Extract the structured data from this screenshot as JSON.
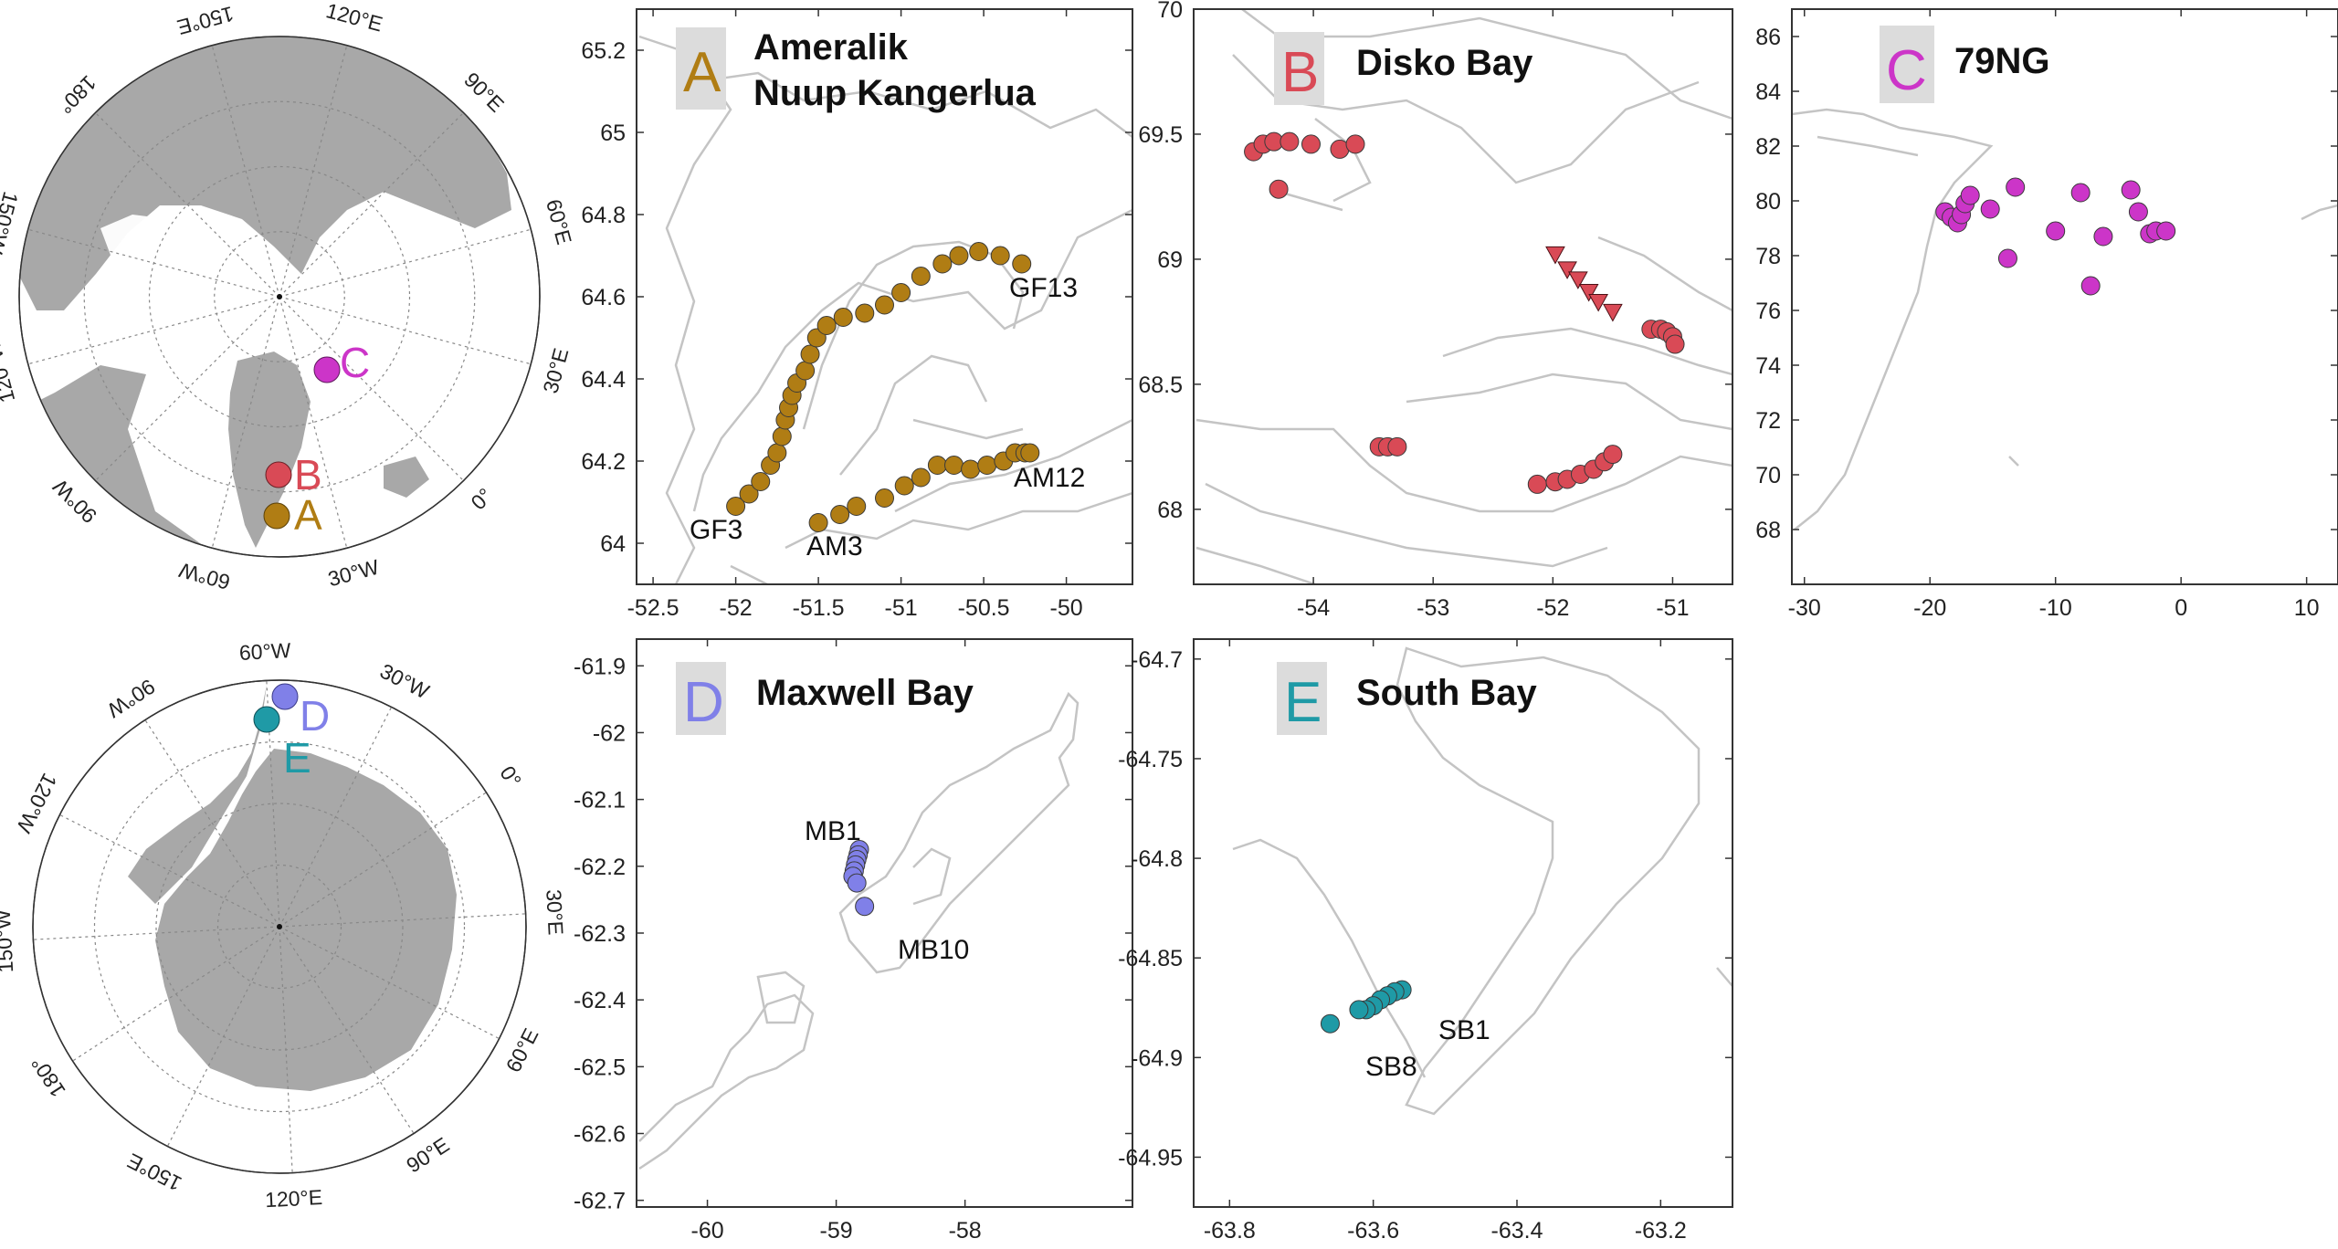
{
  "figure": {
    "globes": {
      "arctic": {
        "lon_labels": [
          "120°E",
          "90°E",
          "60°E",
          "30°E",
          "0°",
          "30°W",
          "60°W",
          "90°W",
          "120°W",
          "150°W",
          "180°",
          "150°E"
        ],
        "markers": [
          {
            "id": "A",
            "label": "A",
            "color": "#b07d14"
          },
          {
            "id": "B",
            "label": "B",
            "color": "#d94a56"
          },
          {
            "id": "C",
            "label": "C",
            "color": "#cc35c8"
          }
        ]
      },
      "antarctic": {
        "lon_labels": [
          "60°W",
          "30°W",
          "0°",
          "30°E",
          "60°E",
          "90°E",
          "120°E",
          "150°E",
          "180°",
          "150°W",
          "120°W",
          "90°W"
        ],
        "markers": [
          {
            "id": "D",
            "label": "D",
            "color": "#8080e8"
          },
          {
            "id": "E",
            "label": "E",
            "color": "#1f9aa6"
          }
        ]
      }
    },
    "colors": {
      "land": "#a8a8a8",
      "coast": "#c4c4c4",
      "panel_letter_bg": "#dcdcdc"
    }
  },
  "chart_data": [
    {
      "type": "scatter",
      "panel": "A",
      "title": "Ameralik\nNuup Kangerlua",
      "xlim": [
        -52.6,
        -49.6
      ],
      "ylim": [
        63.9,
        65.3
      ],
      "xticks": [
        "-52.5",
        "-52",
        "-51.5",
        "-51",
        "-50.5",
        "-50"
      ],
      "yticks": [
        "64",
        "64.2",
        "64.4",
        "64.6",
        "64.8",
        "65",
        "65.2"
      ],
      "color": "#b07d14",
      "series": [
        {
          "name": "GF",
          "points": [
            [
              -52.0,
              64.09
            ],
            [
              -51.92,
              64.12
            ],
            [
              -51.85,
              64.15
            ],
            [
              -51.79,
              64.19
            ],
            [
              -51.75,
              64.22
            ],
            [
              -51.72,
              64.26
            ],
            [
              -51.7,
              64.3
            ],
            [
              -51.68,
              64.33
            ],
            [
              -51.66,
              64.36
            ],
            [
              -51.63,
              64.39
            ],
            [
              -51.58,
              64.42
            ],
            [
              -51.55,
              64.46
            ],
            [
              -51.51,
              64.5
            ],
            [
              -51.45,
              64.53
            ],
            [
              -51.35,
              64.55
            ],
            [
              -51.22,
              64.56
            ],
            [
              -51.1,
              64.58
            ],
            [
              -51.0,
              64.61
            ],
            [
              -50.88,
              64.65
            ],
            [
              -50.75,
              64.68
            ],
            [
              -50.65,
              64.7
            ],
            [
              -50.53,
              64.71
            ],
            [
              -50.4,
              64.7
            ],
            [
              -50.27,
              64.68
            ]
          ]
        },
        {
          "name": "AM",
          "points": [
            [
              -51.5,
              64.05
            ],
            [
              -51.37,
              64.07
            ],
            [
              -51.27,
              64.09
            ],
            [
              -51.1,
              64.11
            ],
            [
              -50.98,
              64.14
            ],
            [
              -50.88,
              64.16
            ],
            [
              -50.78,
              64.19
            ],
            [
              -50.68,
              64.19
            ],
            [
              -50.58,
              64.18
            ],
            [
              -50.48,
              64.19
            ],
            [
              -50.38,
              64.2
            ],
            [
              -50.31,
              64.22
            ],
            [
              -50.25,
              64.22
            ],
            [
              -50.22,
              64.22
            ]
          ]
        }
      ],
      "annotations": [
        {
          "text": "GF3",
          "x": -52.0,
          "y": 64.09
        },
        {
          "text": "GF13",
          "x": -50.27,
          "y": 64.68
        },
        {
          "text": "AM3",
          "x": -51.5,
          "y": 64.05
        },
        {
          "text": "AM12",
          "x": -50.22,
          "y": 64.22
        }
      ]
    },
    {
      "type": "scatter",
      "panel": "B",
      "title": "Disko Bay",
      "xlim": [
        -55.0,
        -50.5
      ],
      "ylim": [
        67.7,
        70.0
      ],
      "xticks": [
        "-54",
        "-53",
        "-52",
        "-51"
      ],
      "yticks": [
        "68",
        "68.5",
        "69",
        "69.5",
        "70"
      ],
      "color": "#d94a56",
      "series": [
        {
          "name": "circles",
          "marker": "circle",
          "points": [
            [
              -54.5,
              69.43
            ],
            [
              -54.42,
              69.46
            ],
            [
              -54.33,
              69.47
            ],
            [
              -54.2,
              69.47
            ],
            [
              -54.02,
              69.46
            ],
            [
              -53.78,
              69.44
            ],
            [
              -53.65,
              69.46
            ],
            [
              -54.29,
              69.28
            ],
            [
              -53.45,
              68.25
            ],
            [
              -53.38,
              68.25
            ],
            [
              -53.3,
              68.25
            ],
            [
              -52.13,
              68.1
            ],
            [
              -51.98,
              68.11
            ],
            [
              -51.88,
              68.12
            ],
            [
              -51.77,
              68.14
            ],
            [
              -51.66,
              68.16
            ],
            [
              -51.57,
              68.19
            ],
            [
              -51.5,
              68.22
            ],
            [
              -51.18,
              68.72
            ],
            [
              -51.1,
              68.72
            ],
            [
              -51.05,
              68.71
            ],
            [
              -51.0,
              68.69
            ],
            [
              -50.98,
              68.66
            ]
          ]
        },
        {
          "name": "triangles",
          "marker": "triangle",
          "points": [
            [
              -51.98,
              69.02
            ],
            [
              -51.88,
              68.96
            ],
            [
              -51.79,
              68.92
            ],
            [
              -51.7,
              68.87
            ],
            [
              -51.62,
              68.83
            ],
            [
              -51.5,
              68.79
            ]
          ]
        }
      ]
    },
    {
      "type": "scatter",
      "panel": "C",
      "title": "79NG",
      "xlim": [
        -31.0,
        12.5
      ],
      "ylim": [
        66.0,
        87.0
      ],
      "xticks": [
        "-30",
        "-20",
        "-10",
        "0",
        "10"
      ],
      "yticks": [
        "68",
        "70",
        "72",
        "74",
        "76",
        "78",
        "80",
        "82",
        "84",
        "86"
      ],
      "color": "#cc35c8",
      "series": [
        {
          "name": "stations",
          "points": [
            [
              -18.8,
              79.6
            ],
            [
              -18.3,
              79.4
            ],
            [
              -17.8,
              79.2
            ],
            [
              -17.5,
              79.5
            ],
            [
              -17.2,
              79.9
            ],
            [
              -16.8,
              80.2
            ],
            [
              -15.2,
              79.7
            ],
            [
              -13.2,
              80.5
            ],
            [
              -13.8,
              77.9
            ],
            [
              -10.0,
              78.9
            ],
            [
              -8.0,
              80.3
            ],
            [
              -6.2,
              78.7
            ],
            [
              -4.0,
              80.4
            ],
            [
              -3.4,
              79.6
            ],
            [
              -2.5,
              78.8
            ],
            [
              -2.0,
              78.9
            ],
            [
              -1.2,
              78.9
            ],
            [
              -7.2,
              76.9
            ]
          ]
        }
      ]
    },
    {
      "type": "scatter",
      "panel": "D",
      "title": "Maxwell Bay",
      "xlim": [
        -60.55,
        -56.7
      ],
      "ylim": [
        -62.71,
        -61.86
      ],
      "xticks": [
        "-60",
        "-59",
        "-58"
      ],
      "yticks": [
        "-61.9",
        "-62",
        "-62.1",
        "-62.2",
        "-62.3",
        "-62.4",
        "-62.5",
        "-62.6",
        "-62.7"
      ],
      "color": "#8080e8",
      "series": [
        {
          "name": "MB",
          "points": [
            [
              -58.82,
              -62.175
            ],
            [
              -58.83,
              -62.183
            ],
            [
              -58.84,
              -62.19
            ],
            [
              -58.85,
              -62.198
            ],
            [
              -58.86,
              -62.207
            ],
            [
              -58.87,
              -62.215
            ],
            [
              -58.84,
              -62.225
            ],
            [
              -58.78,
              -62.26
            ]
          ]
        }
      ],
      "annotations": [
        {
          "text": "MB1",
          "x": -58.82,
          "y": -62.175
        },
        {
          "text": "MB10",
          "x": -58.78,
          "y": -62.26
        }
      ]
    },
    {
      "type": "scatter",
      "panel": "E",
      "title": "South Bay",
      "xlim": [
        -63.85,
        -63.1
      ],
      "ylim": [
        -64.975,
        -64.69
      ],
      "xticks": [
        "-63.8",
        "-63.6",
        "-63.4",
        "-63.2"
      ],
      "yticks": [
        "-64.7",
        "-64.75",
        "-64.8",
        "-64.85",
        "-64.9",
        "-64.95"
      ],
      "color": "#1f9aa6",
      "series": [
        {
          "name": "SB",
          "points": [
            [
              -63.56,
              -64.866
            ],
            [
              -63.57,
              -64.867
            ],
            [
              -63.58,
              -64.869
            ],
            [
              -63.59,
              -64.871
            ],
            [
              -63.6,
              -64.874
            ],
            [
              -63.61,
              -64.876
            ],
            [
              -63.62,
              -64.876
            ],
            [
              -63.66,
              -64.883
            ]
          ]
        }
      ],
      "annotations": [
        {
          "text": "SB1",
          "x": -63.56,
          "y": -64.866
        },
        {
          "text": "SB8",
          "x": -63.66,
          "y": -64.883
        }
      ]
    }
  ]
}
